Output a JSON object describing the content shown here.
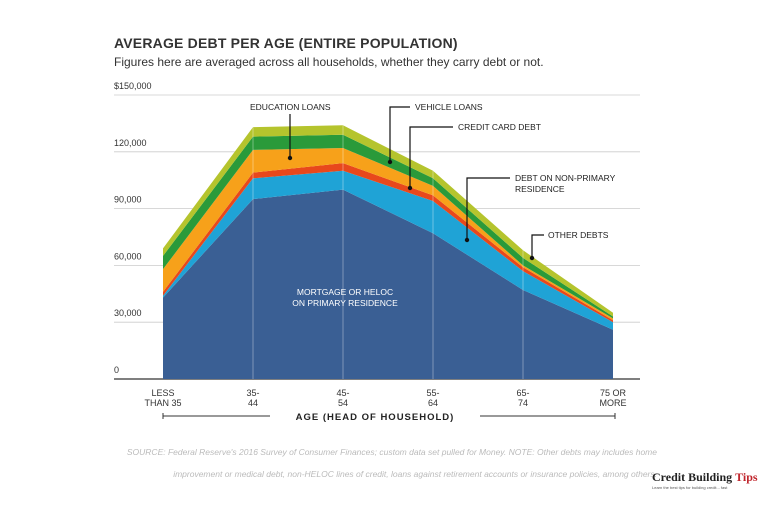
{
  "chart_data": {
    "type": "area",
    "stacked": true,
    "title": "AVERAGE DEBT PER AGE (ENTIRE POPULATION)",
    "subtitle": "Figures here are averaged across all households, whether they carry debt or not.",
    "xlabel": "AGE (HEAD OF HOUSEHOLD)",
    "categories": [
      [
        "LESS",
        "THAN 35"
      ],
      [
        "35-",
        "44"
      ],
      [
        "45-",
        "54"
      ],
      [
        "55-",
        "64"
      ],
      [
        "65-",
        "74"
      ],
      [
        "75 OR",
        "MORE"
      ]
    ],
    "ylim": [
      0,
      150000
    ],
    "yticks": [
      0,
      30000,
      60000,
      90000,
      120000,
      150000
    ],
    "ytick_labels": [
      "0",
      "30,000",
      "60,000",
      "90,000",
      "120,000",
      "$150,000"
    ],
    "grid": true,
    "series": [
      {
        "name": "MORTGAGE OR HELOC ON PRIMARY RESIDENCE",
        "label_lines": [
          "MORTGAGE OR HELOC",
          "ON PRIMARY RESIDENCE"
        ],
        "color": "#3a5f94",
        "values": [
          43000,
          95000,
          100000,
          77000,
          47000,
          26000
        ]
      },
      {
        "name": "DEBT ON NON-PRIMARY RESIDENCE",
        "label_lines": [
          "DEBT ON NON-PRIMARY",
          "RESIDENCE"
        ],
        "color": "#1fa3d6",
        "values": [
          1000,
          11000,
          10000,
          17000,
          10000,
          4000
        ]
      },
      {
        "name": "CREDIT CARD DEBT",
        "label_lines": [
          "CREDIT CARD DEBT"
        ],
        "color": "#e8481c",
        "values": [
          2000,
          3000,
          4000,
          3000,
          2000,
          1000
        ]
      },
      {
        "name": "EDUCATION LOANS",
        "label_lines": [
          "EDUCATION LOANS"
        ],
        "color": "#f7a11a",
        "values": [
          12000,
          12000,
          8000,
          5000,
          1000,
          1000
        ]
      },
      {
        "name": "VEHICLE LOANS",
        "label_lines": [
          "VEHICLE LOANS"
        ],
        "color": "#2a9a3a",
        "values": [
          7000,
          7000,
          7000,
          4000,
          4000,
          1000
        ]
      },
      {
        "name": "OTHER DEBTS",
        "label_lines": [
          "OTHER DEBTS"
        ],
        "color": "#b5c42d",
        "values": [
          4000,
          5000,
          5000,
          4000,
          4000,
          2000
        ]
      }
    ]
  },
  "source": "SOURCE: Federal Reserve's 2016 Survey of Consumer Finances; custom data set pulled for Money. NOTE: Other debts may includes home improvement or medical debt, non-HELOC lines of credit, loans against retirement accounts or insurance policies, among others.",
  "logo": {
    "main": "Credit Building",
    "accent": "Tips",
    "tagline": "Learn the best tips for building credit... fast"
  }
}
